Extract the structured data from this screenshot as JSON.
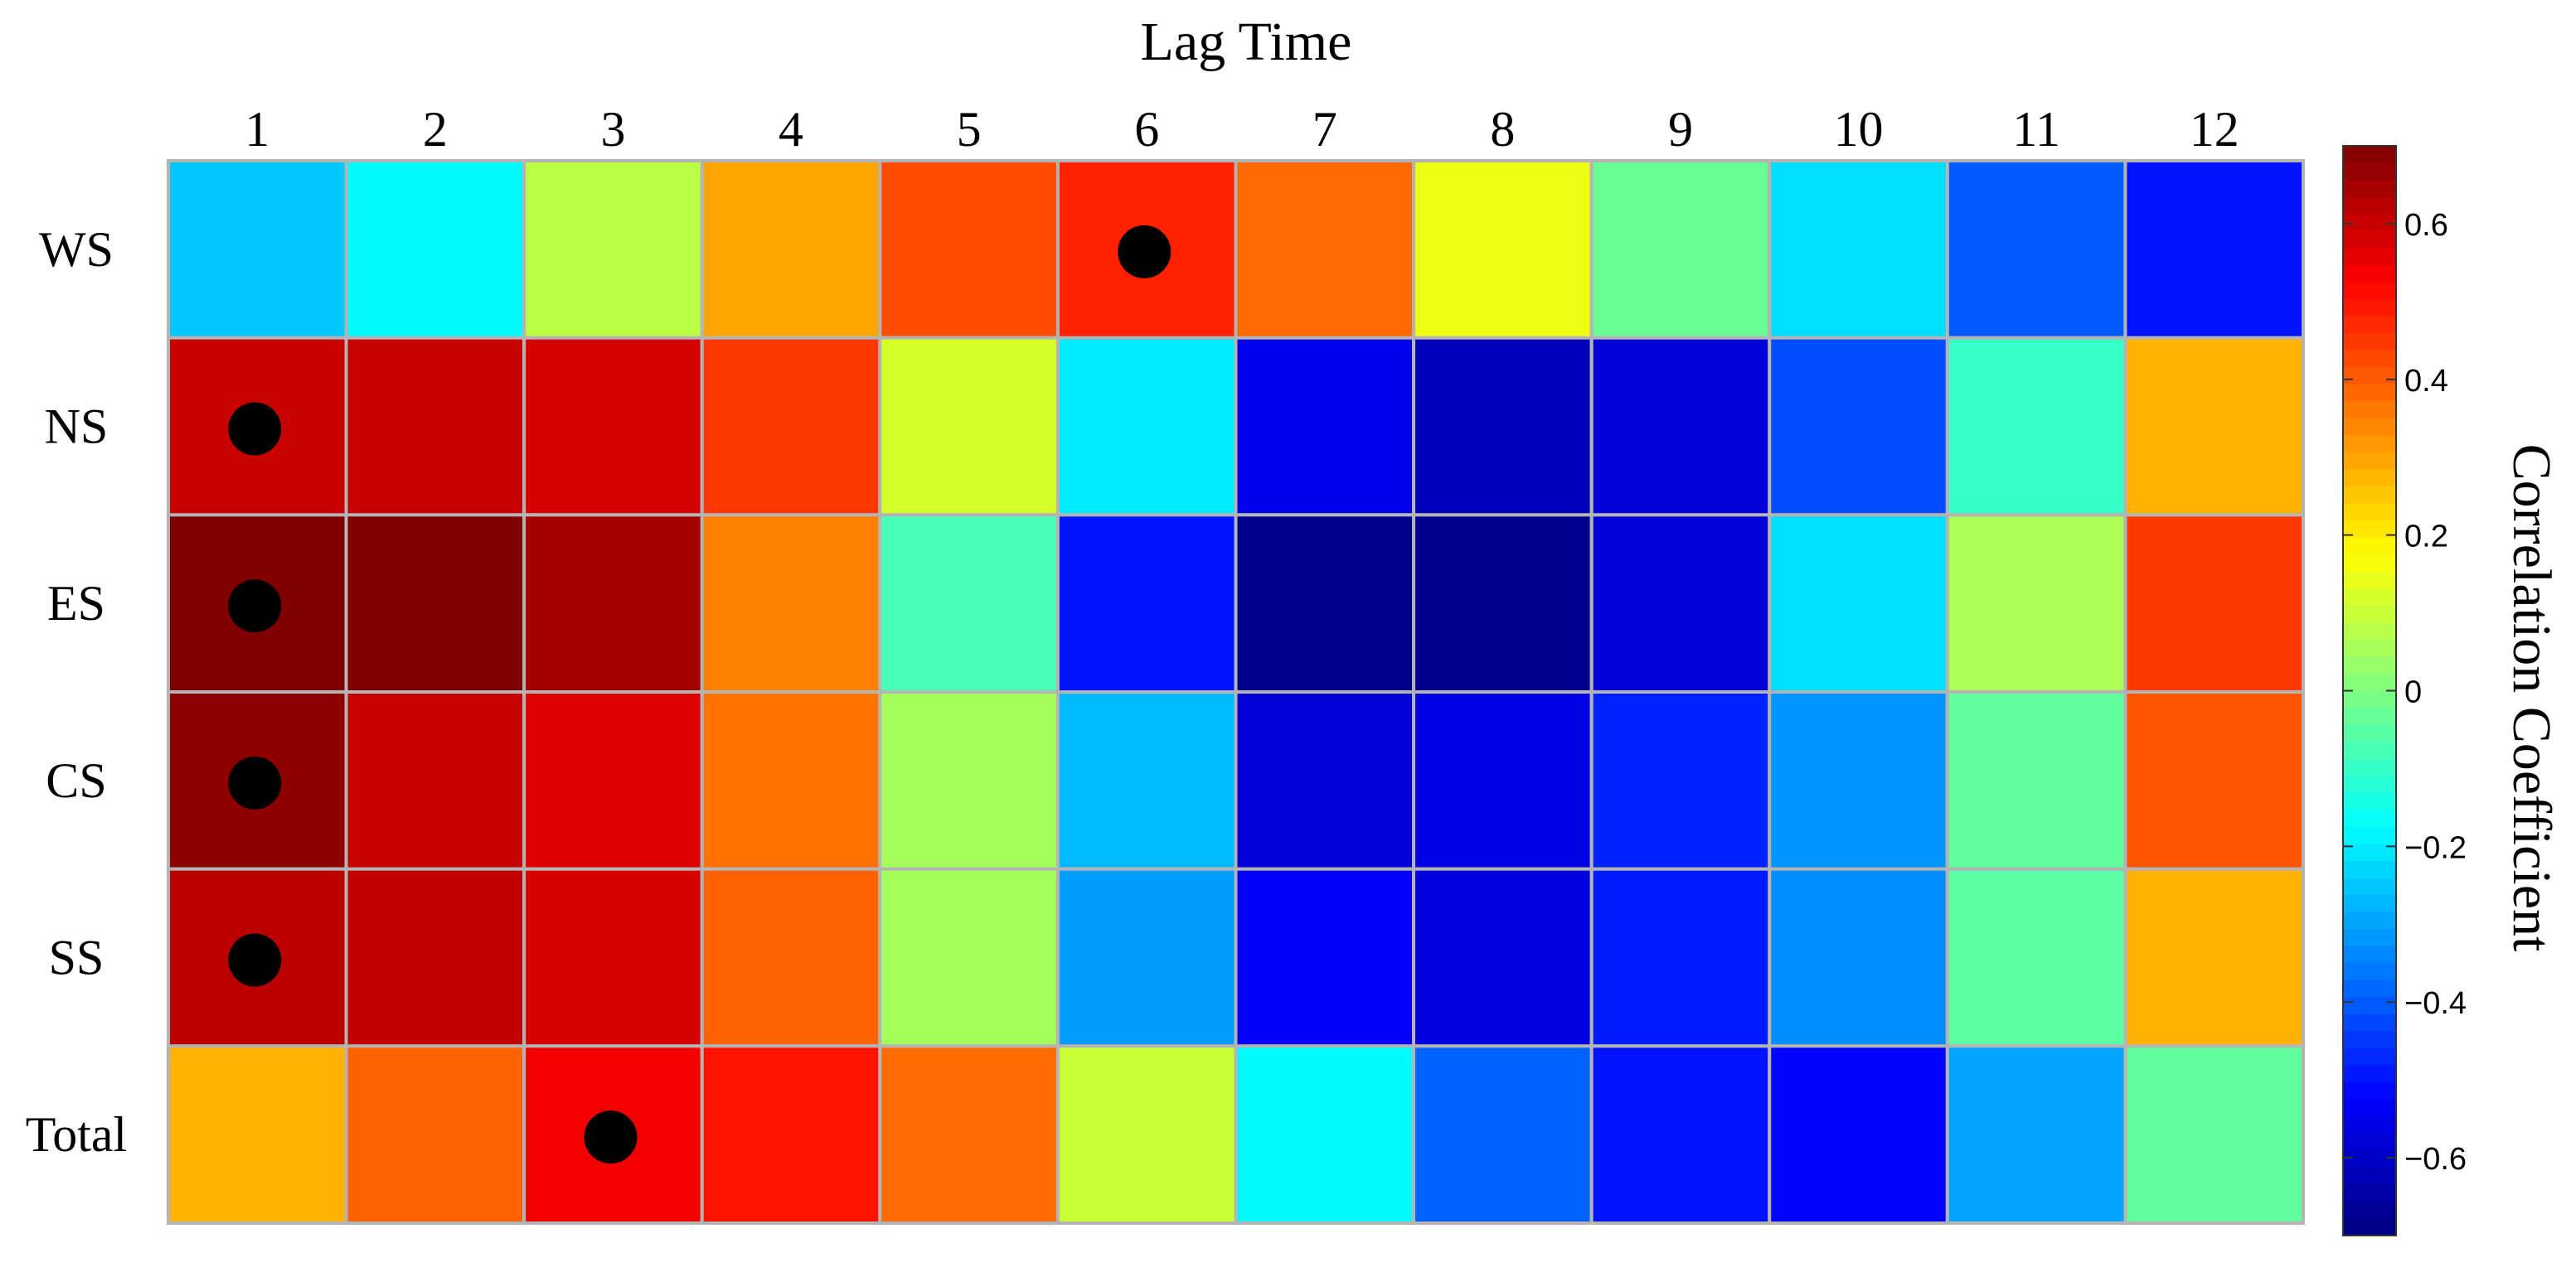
{
  "chart_data": {
    "type": "heatmap",
    "title": "Lag Time",
    "colorbar_label": "Correlation Coefficient",
    "x_categories": [
      "1",
      "2",
      "3",
      "4",
      "5",
      "6",
      "7",
      "8",
      "9",
      "10",
      "11",
      "12"
    ],
    "y_categories": [
      "WS",
      "NS",
      "ES",
      "CS",
      "SS",
      "Total"
    ],
    "values": [
      [
        -0.25,
        -0.18,
        0.08,
        0.3,
        0.42,
        0.48,
        0.38,
        0.15,
        -0.03,
        -0.22,
        -0.4,
        -0.5
      ],
      [
        0.6,
        0.6,
        0.58,
        0.45,
        0.12,
        -0.2,
        -0.55,
        -0.62,
        -0.58,
        -0.42,
        -0.1,
        0.28
      ],
      [
        0.7,
        0.7,
        0.65,
        0.35,
        -0.08,
        -0.5,
        -0.68,
        -0.68,
        -0.58,
        -0.22,
        0.06,
        0.45
      ],
      [
        0.68,
        0.6,
        0.57,
        0.37,
        0.05,
        -0.27,
        -0.58,
        -0.56,
        -0.48,
        -0.32,
        -0.04,
        0.41
      ],
      [
        0.62,
        0.61,
        0.58,
        0.39,
        0.05,
        -0.31,
        -0.53,
        -0.57,
        -0.49,
        -0.33,
        -0.05,
        0.28
      ],
      [
        0.28,
        0.39,
        0.54,
        0.5,
        0.38,
        0.1,
        -0.18,
        -0.39,
        -0.5,
        -0.52,
        -0.3,
        -0.04
      ]
    ],
    "significant_markers": [
      {
        "row": "WS",
        "lag": "6"
      },
      {
        "row": "NS",
        "lag": "1"
      },
      {
        "row": "ES",
        "lag": "1"
      },
      {
        "row": "CS",
        "lag": "1"
      },
      {
        "row": "SS",
        "lag": "1"
      },
      {
        "row": "Total",
        "lag": "3"
      }
    ],
    "colorbar": {
      "min": -0.7,
      "max": 0.7,
      "ticks": [
        -0.6,
        -0.4,
        -0.2,
        0,
        0.2,
        0.4,
        0.6
      ],
      "tick_labels": [
        "−0.6",
        "−0.4",
        "−0.2",
        "0",
        "0.2",
        "0.4",
        "0.6"
      ],
      "colormap": "jet"
    },
    "grid": true,
    "legend": "colorbar-right"
  }
}
